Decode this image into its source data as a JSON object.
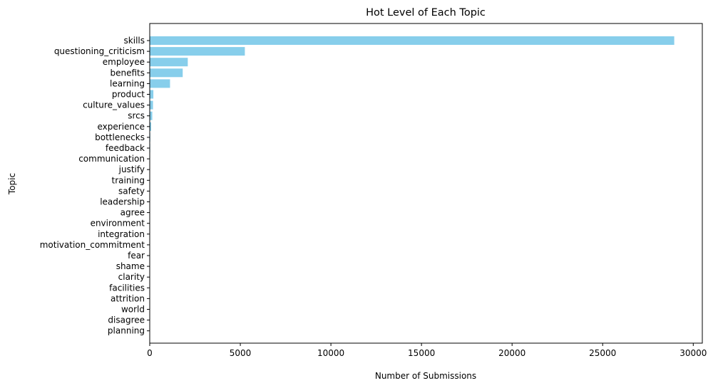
{
  "chart_data": {
    "type": "bar",
    "orientation": "horizontal",
    "title": "Hot Level of Each Topic",
    "xlabel": "Number of Submissions",
    "ylabel": "Topic",
    "xlim": [
      0,
      30500
    ],
    "xticks": [
      0,
      5000,
      10000,
      15000,
      20000,
      25000,
      30000
    ],
    "grid": false,
    "bar_color": "#87CEEB",
    "categories": [
      "skills",
      "questioning_criticism",
      "employee",
      "benefits",
      "learning",
      "product",
      "culture_values",
      "srcs",
      "experience",
      "bottlenecks",
      "feedback",
      "communication",
      "justify",
      "training",
      "safety",
      "leadership",
      "agree",
      "environment",
      "integration",
      "motivation_commitment",
      "fear",
      "shame",
      "clarity",
      "facilities",
      "attrition",
      "world",
      "disagree",
      "planning"
    ],
    "values": [
      28950,
      5250,
      2100,
      1820,
      1120,
      200,
      180,
      140,
      80,
      30,
      25,
      20,
      15,
      12,
      10,
      9,
      8,
      7,
      6,
      5,
      4,
      4,
      3,
      3,
      2,
      2,
      1,
      1
    ]
  }
}
